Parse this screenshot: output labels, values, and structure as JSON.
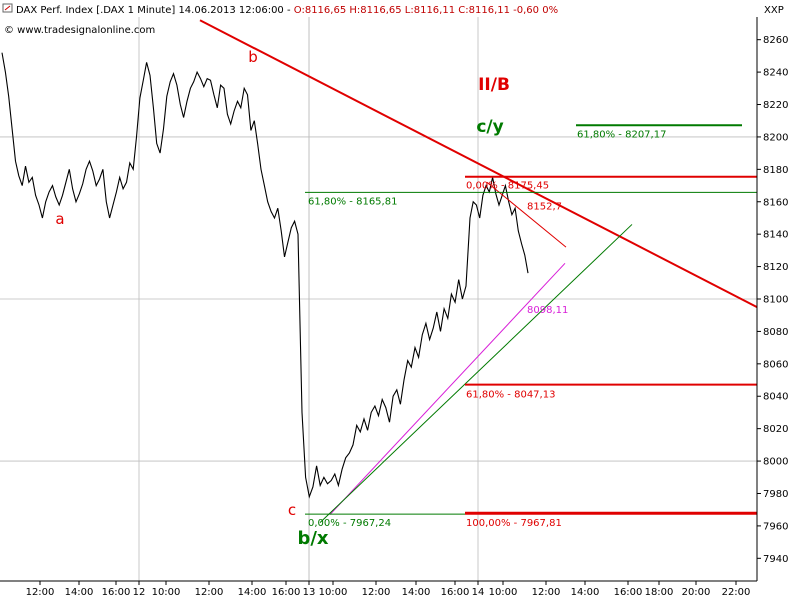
{
  "header": {
    "instrument": "DAX Perf. Index [.DAX  1 Minute] 14.06.2013 12:06:00 - ",
    "ohlc_prefix": "O:8116,65 H:8116,65 L:8116,11 ",
    "close": "C:8116,11 -0,60 0%",
    "watermark": "© www.tradesignalonline.com",
    "symbol_label": "XXP"
  },
  "colors": {
    "background": "#ffffff",
    "grid": "#bdbdbd",
    "price": "#000000",
    "red": "#e00000",
    "green": "#007a00",
    "magenta": "#d81ed8"
  },
  "chart_data": {
    "type": "line",
    "y_axis": {
      "ylim": [
        7926,
        8274
      ],
      "ticks": [
        7940,
        7960,
        7980,
        8000,
        8020,
        8040,
        8060,
        8080,
        8100,
        8120,
        8140,
        8160,
        8180,
        8200,
        8220,
        8240,
        8260
      ],
      "position": "right"
    },
    "x_axis": {
      "labels": [
        "12:00",
        "14:00",
        "16:00",
        "12",
        "10:00",
        "12:00",
        "14:00",
        "16:00",
        "13",
        "10:00",
        "12:00",
        "14:00",
        "16:00",
        "14",
        "10:00",
        "12:00",
        "14:00",
        "16:00",
        "18:00",
        "20:00",
        "22:00"
      ],
      "day_labels": [
        "12",
        "13",
        "14"
      ]
    },
    "series": [
      {
        "values": [
          8252,
          8240,
          8225,
          8205,
          8185,
          8176,
          8170,
          8182,
          8172,
          8175,
          8164,
          8158,
          8150,
          8160,
          8166,
          8170,
          8163,
          8158,
          8164,
          8172,
          8180,
          8168,
          8160,
          8165,
          8171,
          8180,
          8185,
          8179,
          8170,
          8174,
          8180,
          8160,
          8150,
          8158,
          8166,
          8175,
          8168,
          8172,
          8184,
          8180,
          8200,
          8224,
          8235,
          8246,
          8238,
          8218,
          8196,
          8190,
          8205,
          8225,
          8234,
          8239,
          8232,
          8220,
          8212,
          8222,
          8230,
          8234,
          8240,
          8236,
          8231,
          8236,
          8235,
          8226,
          8218,
          8232,
          8230,
          8214,
          8208,
          8216,
          8222,
          8218,
          8230,
          8226,
          8204,
          8210,
          8196,
          8180,
          8170,
          8160,
          8154,
          8150,
          8156,
          8142,
          8126,
          8135,
          8144,
          8148,
          8140,
          8030,
          7990,
          7978,
          7984,
          7997,
          7985,
          7990,
          7986,
          7988,
          7992,
          7985,
          7995,
          8002,
          8005,
          8010,
          8022,
          8018,
          8026,
          8019,
          8030,
          8034,
          8028,
          8038,
          8033,
          8024,
          8040,
          8044,
          8035,
          8050,
          8062,
          8058,
          8070,
          8064,
          8078,
          8085,
          8075,
          8082,
          8092,
          8080,
          8094,
          8088,
          8103,
          8098,
          8112,
          8100,
          8108,
          8150,
          8160,
          8158,
          8150,
          8164,
          8170,
          8166,
          8175,
          8165,
          8158,
          8164,
          8170,
          8160,
          8152,
          8156,
          8142,
          8134,
          8127,
          8116
        ]
      }
    ],
    "annotations": [
      {
        "text": "a"
      },
      {
        "text": "b"
      },
      {
        "text": "c"
      },
      {
        "text": "II/B"
      },
      {
        "text": "c/y"
      },
      {
        "text": "b/x"
      }
    ],
    "levels": [
      {
        "label": "61,80% - 8207,17",
        "value": 8207.17
      },
      {
        "label": "61,80% - 8165,81",
        "value": 8165.81
      },
      {
        "label": "0,00% - 8175,45",
        "value": 8175.45
      },
      {
        "label": "8152,7",
        "value": 8152.7
      },
      {
        "label": "8098,11",
        "value": 8098.11
      },
      {
        "label": "61,80% - 8047,13",
        "value": 8047.13
      },
      {
        "label": "0,00% - 7967,24",
        "value": 7967.24
      },
      {
        "label": "100,00% - 7967,81",
        "value": 7967.81
      }
    ]
  }
}
